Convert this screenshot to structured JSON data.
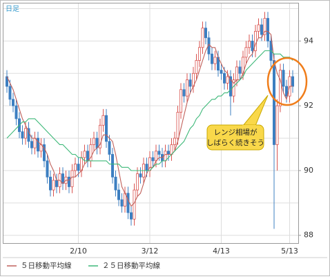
{
  "chart_data": {
    "type": "candlestick",
    "label": "日足",
    "categories": [
      null,
      null,
      null,
      null,
      null,
      null,
      null,
      null,
      null,
      null,
      null,
      null,
      null,
      null,
      null,
      null,
      null,
      null,
      null,
      null,
      null,
      null,
      null,
      "2/10",
      null,
      null,
      null,
      null,
      null,
      null,
      null,
      null,
      null,
      null,
      null,
      null,
      null,
      null,
      null,
      null,
      null,
      null,
      null,
      null,
      null,
      null,
      "3/12",
      null,
      null,
      null,
      null,
      null,
      null,
      null,
      null,
      null,
      null,
      null,
      null,
      null,
      null,
      null,
      null,
      null,
      null,
      null,
      null,
      null,
      null,
      "4/13",
      null,
      null,
      null,
      null,
      null,
      null,
      null,
      null,
      null,
      null,
      null,
      null,
      null,
      null,
      null,
      null,
      null,
      null,
      null,
      null,
      null,
      "5/13",
      null
    ],
    "open": [
      92.9,
      92.6,
      92.2,
      92.0,
      91.6,
      91.2,
      91.0,
      91.3,
      90.9,
      90.7,
      91.0,
      90.6,
      90.8,
      90.3,
      89.8,
      89.4,
      89.7,
      89.5,
      89.9,
      89.6,
      89.8,
      89.5,
      90.0,
      90.2,
      90.0,
      90.4,
      90.6,
      90.3,
      90.8,
      91.0,
      90.7,
      91.4,
      91.7,
      90.9,
      90.5,
      89.8,
      89.4,
      89.1,
      88.9,
      89.3,
      88.7,
      88.5,
      89.4,
      89.9,
      89.8,
      90.2,
      90.0,
      90.4,
      90.3,
      90.6,
      90.5,
      90.3,
      90.6,
      90.5,
      90.8,
      91.0,
      91.8,
      92.5,
      92.3,
      92.8,
      92.6,
      93.0,
      93.4,
      93.8,
      94.4,
      94.1,
      93.6,
      93.3,
      93.5,
      93.1,
      93.0,
      92.7,
      92.9,
      92.3,
      92.8,
      93.2,
      93.0,
      93.5,
      93.8,
      94.0,
      93.7,
      94.3,
      94.5,
      94.2,
      94.7,
      94.0,
      93.4,
      90.8,
      92.0,
      93.1,
      92.6,
      92.3,
      92.9
    ],
    "high": [
      93.1,
      92.8,
      92.4,
      92.2,
      91.8,
      91.4,
      91.5,
      91.5,
      91.1,
      91.2,
      91.2,
      91.0,
      91.0,
      90.5,
      90.0,
      89.9,
      89.9,
      90.1,
      90.1,
      90.0,
      90.0,
      90.2,
      90.4,
      90.4,
      90.6,
      90.8,
      90.8,
      91.0,
      91.2,
      91.2,
      91.6,
      91.9,
      91.9,
      91.1,
      90.7,
      90.0,
      89.6,
      89.3,
      89.5,
      89.5,
      88.9,
      89.6,
      90.1,
      90.1,
      90.4,
      90.4,
      90.6,
      90.6,
      90.8,
      90.8,
      90.7,
      90.8,
      90.8,
      91.0,
      91.2,
      92.0,
      92.7,
      92.7,
      93.0,
      93.0,
      93.2,
      93.6,
      94.0,
      94.6,
      94.6,
      94.3,
      93.8,
      93.7,
      93.7,
      93.3,
      93.2,
      93.1,
      93.1,
      93.0,
      93.4,
      93.4,
      93.7,
      94.0,
      94.2,
      94.2,
      94.5,
      94.7,
      94.7,
      94.9,
      94.9,
      94.2,
      93.6,
      92.2,
      93.3,
      93.3,
      92.8,
      93.1,
      93.1
    ],
    "low": [
      92.4,
      92.0,
      91.8,
      91.4,
      91.0,
      90.8,
      90.8,
      90.7,
      90.5,
      90.5,
      90.4,
      90.4,
      90.1,
      89.6,
      89.2,
      89.2,
      89.3,
      89.3,
      89.4,
      89.4,
      89.3,
      89.3,
      89.8,
      89.8,
      89.8,
      90.2,
      90.1,
      90.1,
      90.6,
      90.5,
      90.5,
      91.2,
      90.7,
      90.3,
      89.6,
      89.2,
      88.9,
      88.7,
      88.7,
      88.5,
      88.3,
      88.3,
      89.2,
      89.6,
      89.6,
      89.8,
      89.8,
      90.1,
      90.1,
      90.3,
      90.1,
      90.1,
      90.3,
      90.3,
      90.6,
      90.8,
      91.6,
      92.1,
      92.1,
      92.4,
      92.4,
      92.8,
      93.2,
      93.6,
      93.9,
      93.4,
      93.1,
      93.1,
      92.9,
      92.8,
      92.5,
      92.5,
      91.7,
      92.1,
      92.6,
      92.8,
      92.8,
      93.3,
      93.6,
      93.5,
      93.5,
      94.1,
      94.0,
      94.0,
      93.8,
      93.2,
      88.2,
      90.0,
      91.8,
      92.4,
      92.1,
      92.1,
      92.4
    ],
    "close": [
      92.6,
      92.2,
      92.0,
      91.6,
      91.2,
      91.0,
      91.3,
      90.9,
      90.7,
      91.0,
      90.6,
      90.8,
      90.3,
      89.8,
      89.4,
      89.7,
      89.5,
      89.9,
      89.6,
      89.8,
      89.5,
      90.0,
      90.2,
      90.0,
      90.4,
      90.6,
      90.3,
      90.8,
      91.0,
      90.7,
      91.4,
      91.7,
      90.9,
      90.5,
      89.8,
      89.4,
      89.1,
      88.9,
      89.3,
      88.7,
      88.5,
      89.4,
      89.9,
      89.8,
      90.2,
      90.0,
      90.4,
      90.3,
      90.6,
      90.5,
      90.3,
      90.6,
      90.5,
      90.8,
      91.0,
      91.8,
      92.5,
      92.3,
      92.8,
      92.6,
      93.0,
      93.4,
      93.8,
      94.4,
      94.1,
      93.6,
      93.3,
      93.5,
      93.1,
      93.0,
      92.7,
      92.9,
      92.3,
      92.8,
      93.2,
      93.0,
      93.5,
      93.8,
      94.0,
      93.7,
      94.3,
      94.5,
      94.2,
      94.7,
      94.0,
      93.4,
      90.8,
      92.0,
      93.1,
      92.6,
      92.3,
      92.9,
      92.6
    ],
    "up_color": "#d9534f",
    "down_color": "#3d7fc1",
    "series": [
      {
        "name": "５日移動平均線",
        "color": "#c0605a",
        "values": [
          92.9,
          92.7,
          92.5,
          92.2,
          91.9,
          91.6,
          91.4,
          91.2,
          91.0,
          91.0,
          90.9,
          90.8,
          90.7,
          90.5,
          90.2,
          90.0,
          89.7,
          89.7,
          89.6,
          89.7,
          89.7,
          89.8,
          89.8,
          89.9,
          90.0,
          90.2,
          90.3,
          90.4,
          90.6,
          90.7,
          90.8,
          91.1,
          91.1,
          91.0,
          90.9,
          90.5,
          90.0,
          89.5,
          89.3,
          89.1,
          88.9,
          89.0,
          89.2,
          89.3,
          89.6,
          89.9,
          90.1,
          90.1,
          90.3,
          90.4,
          90.4,
          90.5,
          90.5,
          90.5,
          90.6,
          90.9,
          91.3,
          91.7,
          92.1,
          92.4,
          92.6,
          92.8,
          93.1,
          93.4,
          93.7,
          93.9,
          93.8,
          93.8,
          93.5,
          93.3,
          93.1,
          93.0,
          92.8,
          92.7,
          92.8,
          92.8,
          93.0,
          93.3,
          93.5,
          93.6,
          93.9,
          94.1,
          94.1,
          94.3,
          94.3,
          94.2,
          93.4,
          93.0,
          92.8,
          92.4,
          92.2,
          92.6,
          92.6
        ]
      },
      {
        "name": "２５日移動平均線",
        "color": "#3cb878",
        "values": [
          91.0,
          91.1,
          91.2,
          91.3,
          91.4,
          91.5,
          91.5,
          91.6,
          91.6,
          91.6,
          91.5,
          91.4,
          91.3,
          91.2,
          91.1,
          91.0,
          90.9,
          90.8,
          90.8,
          90.7,
          90.6,
          90.5,
          90.5,
          90.4,
          90.4,
          90.3,
          90.3,
          90.3,
          90.3,
          90.3,
          90.3,
          90.3,
          90.3,
          90.2,
          90.2,
          90.2,
          90.2,
          90.1,
          90.1,
          90.1,
          90.0,
          90.0,
          90.0,
          90.0,
          90.0,
          90.0,
          90.0,
          90.1,
          90.2,
          90.2,
          90.3,
          90.3,
          90.4,
          90.5,
          90.6,
          90.7,
          90.8,
          90.9,
          91.1,
          91.3,
          91.4,
          91.6,
          91.7,
          91.9,
          92.0,
          92.1,
          92.2,
          92.2,
          92.3,
          92.3,
          92.4,
          92.4,
          92.5,
          92.6,
          92.7,
          92.8,
          92.9,
          93.1,
          93.2,
          93.3,
          93.4,
          93.5,
          93.6,
          93.7,
          93.7,
          93.7,
          93.6,
          93.6,
          93.6,
          93.5,
          93.5,
          93.5,
          93.4
        ]
      }
    ],
    "ylim": [
      87.76,
      95.16
    ],
    "yticks": [
      88,
      90,
      92,
      94
    ],
    "minor_yticks": [
      89,
      91,
      93,
      95
    ],
    "grid": true,
    "annotation": [
      "レンジ相場が",
      "しばらく続きそう"
    ]
  }
}
